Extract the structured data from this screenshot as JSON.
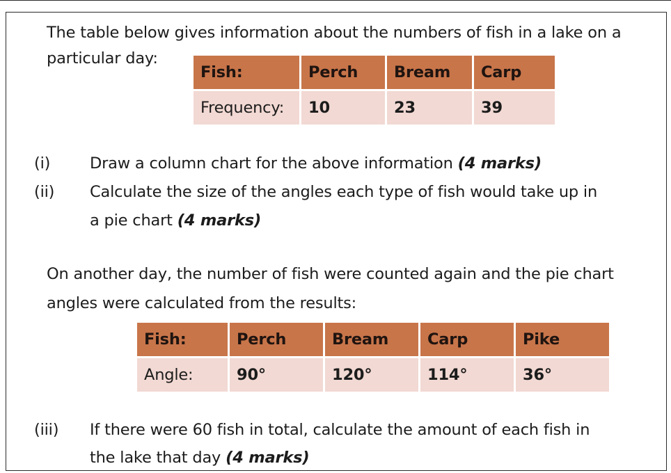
{
  "intro": {
    "line1": "The table below gives information about the numbers of fish in a lake on a",
    "line2": "particular day:"
  },
  "table1": {
    "header": [
      "Fish:",
      "Perch",
      "Bream",
      "Carp"
    ],
    "row": [
      "Frequency:",
      "10",
      "23",
      "39"
    ]
  },
  "questions": {
    "q1": {
      "num": "(i)",
      "text": "Draw a column chart for the above information ",
      "marks": "(4 marks)"
    },
    "q2": {
      "num": "(ii)",
      "line1": "Calculate the size of the angles each type of fish would take up in",
      "line2": "a pie chart ",
      "marks": "(4 marks)"
    },
    "q3": {
      "num": "(iii)",
      "line1": "If there were 60 fish in total, calculate the amount of each fish in",
      "line2": "the lake that day ",
      "marks": "(4 marks)"
    }
  },
  "second_intro": {
    "line1": "On another day, the number of fish were counted again and the pie chart",
    "line2": "angles were calculated from the results:"
  },
  "table2": {
    "header": [
      "Fish:",
      "Perch",
      "Bream",
      "Carp",
      "Pike"
    ],
    "row": [
      "Angle:",
      "90°",
      "120°",
      "114°",
      "36°"
    ]
  },
  "colors": {
    "header_fill": "#c8754a",
    "body_fill": "#f2d9d3"
  }
}
